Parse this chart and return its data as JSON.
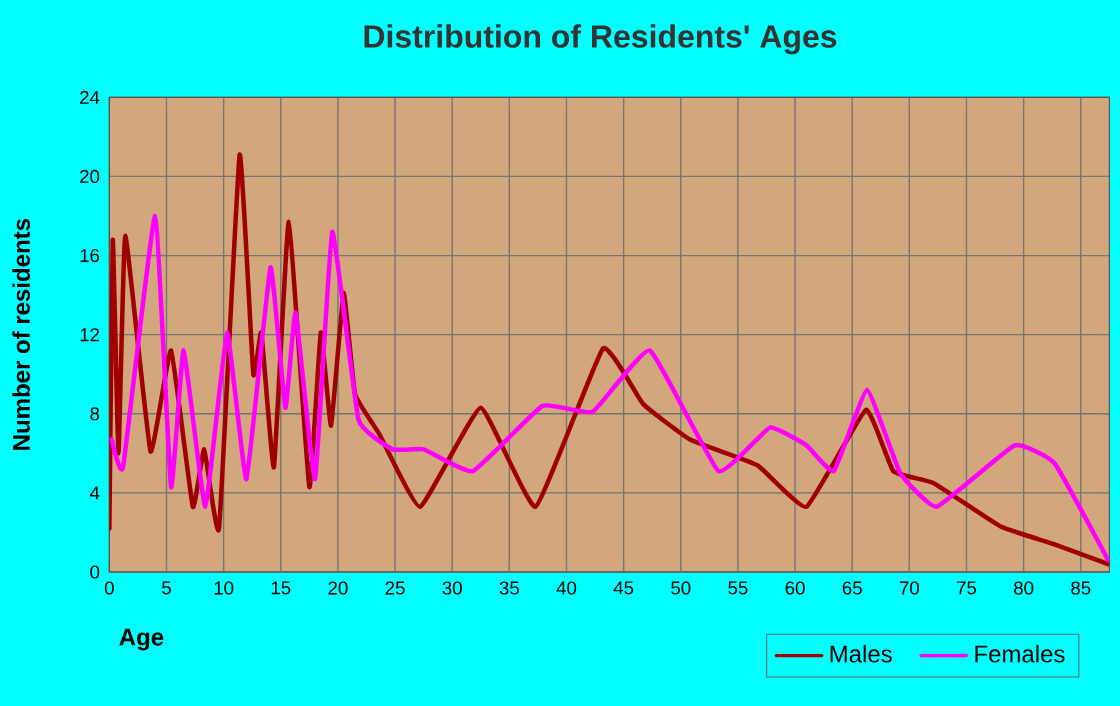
{
  "chart_data": {
    "type": "line",
    "title": "Distribution of Residents' Ages",
    "xlabel": "Age",
    "ylabel": "Number of residents",
    "xlim": [
      0,
      87.5
    ],
    "xticks": [
      0,
      5,
      10,
      15,
      20,
      25,
      30,
      35,
      40,
      45,
      50,
      55,
      60,
      65,
      70,
      75,
      80,
      85
    ],
    "ylim": [
      0,
      24
    ],
    "yticks": [
      0,
      4,
      8,
      12,
      16,
      20,
      24
    ],
    "grid": true,
    "legend": "bottom",
    "marker": "none",
    "line_style": "solid",
    "series": [
      {
        "name": "Males",
        "color": "#a00000",
        "x": [
          0,
          0.3,
          0.8,
          1.4,
          3.6,
          5.4,
          7.3,
          8.3,
          9.6,
          11.4,
          12.6,
          13.3,
          14.4,
          15.7,
          17.5,
          18.5,
          19.4,
          20.5,
          21.5,
          23.6,
          27.2,
          32.5,
          37.3,
          43.2,
          46.7,
          50.8,
          56.7,
          61.0,
          66.2,
          68.6,
          72.1,
          78.0,
          82.7,
          87.4
        ],
        "values": [
          2.2,
          16.8,
          6,
          17,
          6.1,
          11.2,
          3.3,
          6.2,
          2.2,
          21.1,
          10,
          12.1,
          5.3,
          17.7,
          4.3,
          12.1,
          7.4,
          14.1,
          9,
          7,
          3.3,
          8.3,
          3.3,
          11.3,
          8.5,
          6.7,
          5.4,
          3.3,
          8.2,
          5.1,
          4.5,
          2.3,
          1.4,
          0.4
        ]
      },
      {
        "name": "Females",
        "color": "#ff00ff",
        "x": [
          0.2,
          1.2,
          4.0,
          5.4,
          6.5,
          8.4,
          10.3,
          12.0,
          14.1,
          15.4,
          16.3,
          18.0,
          19.5,
          21.8,
          24.8,
          27.5,
          31.8,
          37.9,
          42.3,
          47.3,
          53.3,
          57.8,
          61.0,
          63.4,
          66.3,
          69.2,
          72.4,
          79.2,
          82.7,
          87.4
        ],
        "values": [
          6.7,
          5.3,
          18,
          4.3,
          11.2,
          3.3,
          12.1,
          4.7,
          15.4,
          8.3,
          13.1,
          4.7,
          17.2,
          7.7,
          6.2,
          6.2,
          5.1,
          8.4,
          8.1,
          11.2,
          5.1,
          7.3,
          6.4,
          5.1,
          9.2,
          5.0,
          3.3,
          6.4,
          5.5,
          0.6
        ]
      }
    ]
  }
}
